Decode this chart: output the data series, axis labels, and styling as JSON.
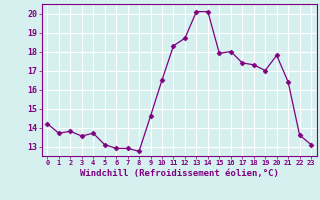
{
  "x": [
    0,
    1,
    2,
    3,
    4,
    5,
    6,
    7,
    8,
    9,
    10,
    11,
    12,
    13,
    14,
    15,
    16,
    17,
    18,
    19,
    20,
    21,
    22,
    23
  ],
  "y": [
    14.2,
    13.7,
    13.8,
    13.55,
    13.7,
    13.1,
    12.9,
    12.9,
    12.75,
    14.6,
    16.5,
    18.3,
    18.7,
    20.1,
    20.1,
    17.9,
    18.0,
    17.4,
    17.3,
    17.0,
    17.8,
    16.4,
    13.6,
    13.1
  ],
  "line_color": "#800080",
  "marker": "D",
  "marker_size": 2.5,
  "bg_color": "#d6f0f0",
  "grid_color": "#ffffff",
  "xlabel": "Windchill (Refroidissement éolien,°C)",
  "ylabel": "",
  "ylim": [
    12.5,
    20.5
  ],
  "xlim": [
    -0.5,
    23.5
  ],
  "yticks": [
    13,
    14,
    15,
    16,
    17,
    18,
    19,
    20
  ],
  "xticks": [
    0,
    1,
    2,
    3,
    4,
    5,
    6,
    7,
    8,
    9,
    10,
    11,
    12,
    13,
    14,
    15,
    16,
    17,
    18,
    19,
    20,
    21,
    22,
    23
  ],
  "tick_color": "#800080",
  "label_color": "#800080",
  "font_family": "monospace",
  "xtick_fontsize": 5.0,
  "ytick_fontsize": 6.0,
  "xlabel_fontsize": 6.5
}
